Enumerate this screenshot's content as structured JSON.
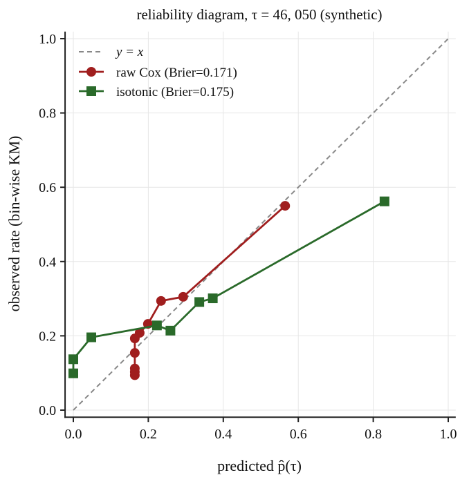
{
  "chart_data": {
    "type": "line",
    "title": "reliability diagram, τ = 46, 050 (synthetic)",
    "xlabel": "predicted p̂(τ)",
    "ylabel": "observed rate (bin-wise KM)",
    "xlim": [
      -0.022,
      1.02
    ],
    "ylim": [
      -0.019,
      1.019
    ],
    "xticks": [
      "0.0",
      "0.2",
      "0.4",
      "0.6",
      "0.8",
      "1.0"
    ],
    "yticks": [
      "0.0",
      "0.2",
      "0.4",
      "0.6",
      "0.8",
      "1.0"
    ],
    "grid": true,
    "legend_position": "top-left",
    "reference": {
      "name": "y = x",
      "color": "#888888",
      "style": "dashed",
      "x": [
        0,
        1
      ],
      "y": [
        0,
        1
      ]
    },
    "series": [
      {
        "name": "raw Cox (Brier=0.171)",
        "color": "#a01e1e",
        "marker": "circle",
        "x": [
          0.164,
          0.164,
          0.164,
          0.164,
          0.164,
          0.177,
          0.199,
          0.234,
          0.293,
          0.565
        ],
        "y": [
          0.094,
          0.103,
          0.112,
          0.154,
          0.193,
          0.208,
          0.232,
          0.294,
          0.305,
          0.55
        ]
      },
      {
        "name": "isotonic (Brier=0.175)",
        "color": "#2a6a2a",
        "marker": "square",
        "x": [
          0.0,
          0.0,
          0.048,
          0.223,
          0.259,
          0.336,
          0.372,
          0.83
        ],
        "y": [
          0.099,
          0.137,
          0.196,
          0.228,
          0.214,
          0.291,
          0.301,
          0.562
        ]
      }
    ]
  }
}
